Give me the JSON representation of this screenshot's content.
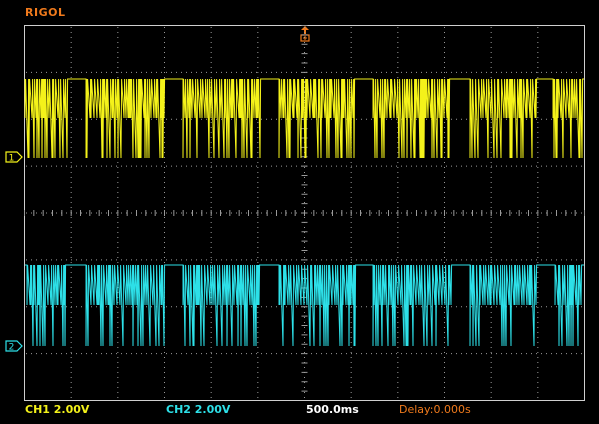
{
  "brand": "RIGOL",
  "colors": {
    "brand": "#f07a1c",
    "ch1": "#f4f21a",
    "ch2": "#2de0e8",
    "grid": "#9a9a9a",
    "border": "#cfcfcf",
    "trigger": "#f07a1c",
    "timebase": "#ffffff"
  },
  "markers": {
    "ch1": "1",
    "ch2": "2"
  },
  "status": {
    "ch1": "CH1  2.00V",
    "ch2": "CH2  2.00V",
    "timebase": "500.0ms",
    "delay": "Delay:0.000s"
  },
  "icons": {
    "trigger": "trigger-position-icon"
  }
}
